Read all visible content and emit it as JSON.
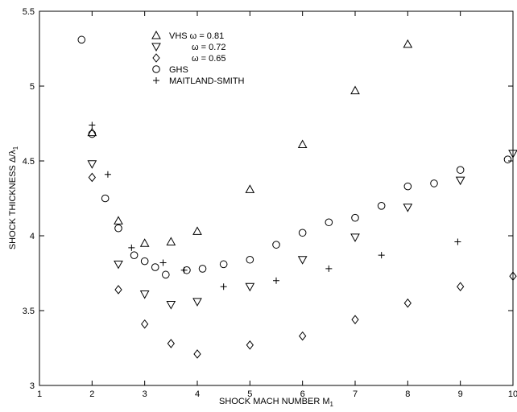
{
  "chart_data": {
    "type": "scatter",
    "xlabel": "SHOCK MACH NUMBER M",
    "xlabel_sub": "1",
    "ylabel": "SHOCK THICKNESS Δ/λ",
    "ylabel_sub": "1",
    "xlim": [
      1,
      10
    ],
    "ylim": [
      3,
      5.5
    ],
    "xticks": [
      "1",
      "2",
      "3",
      "4",
      "5",
      "6",
      "7",
      "8",
      "9",
      "10"
    ],
    "yticks": [
      "3",
      "3.5",
      "4",
      "4.5",
      "5",
      "5.5"
    ],
    "grid": false,
    "legend_position": "top-left",
    "series": [
      {
        "name": "VHS ω = 0.81",
        "marker": "triangle-up",
        "points": [
          [
            2.0,
            4.69
          ],
          [
            2.5,
            4.1
          ],
          [
            3.0,
            3.95
          ],
          [
            3.5,
            3.96
          ],
          [
            4.0,
            4.03
          ],
          [
            5.0,
            4.31
          ],
          [
            6.0,
            4.61
          ],
          [
            7.0,
            4.97
          ],
          [
            8.0,
            5.28
          ]
        ]
      },
      {
        "name": "ω = 0.72",
        "marker": "triangle-down",
        "points": [
          [
            2.0,
            4.48
          ],
          [
            2.5,
            3.81
          ],
          [
            3.0,
            3.61
          ],
          [
            3.5,
            3.54
          ],
          [
            4.0,
            3.56
          ],
          [
            5.0,
            3.66
          ],
          [
            6.0,
            3.84
          ],
          [
            7.0,
            3.99
          ],
          [
            8.0,
            4.19
          ],
          [
            9.0,
            4.37
          ],
          [
            10.0,
            4.55
          ]
        ]
      },
      {
        "name": "ω = 0.65",
        "marker": "diamond",
        "points": [
          [
            2.0,
            4.39
          ],
          [
            2.5,
            3.64
          ],
          [
            3.0,
            3.41
          ],
          [
            3.5,
            3.28
          ],
          [
            4.0,
            3.21
          ],
          [
            5.0,
            3.27
          ],
          [
            6.0,
            3.33
          ],
          [
            7.0,
            3.44
          ],
          [
            8.0,
            3.55
          ],
          [
            9.0,
            3.66
          ],
          [
            10.0,
            3.73
          ]
        ]
      },
      {
        "name": "GHS",
        "marker": "circle",
        "points": [
          [
            1.8,
            5.31
          ],
          [
            2.0,
            4.68
          ],
          [
            2.25,
            4.25
          ],
          [
            2.5,
            4.05
          ],
          [
            2.8,
            3.87
          ],
          [
            3.0,
            3.83
          ],
          [
            3.2,
            3.79
          ],
          [
            3.4,
            3.74
          ],
          [
            3.8,
            3.77
          ],
          [
            4.1,
            3.78
          ],
          [
            4.5,
            3.81
          ],
          [
            5.0,
            3.84
          ],
          [
            5.5,
            3.94
          ],
          [
            6.0,
            4.02
          ],
          [
            6.5,
            4.09
          ],
          [
            7.0,
            4.12
          ],
          [
            7.5,
            4.2
          ],
          [
            8.0,
            4.33
          ],
          [
            8.5,
            4.35
          ],
          [
            9.0,
            4.44
          ],
          [
            9.9,
            4.51
          ]
        ]
      },
      {
        "name": "MAITLAND-SMITH",
        "marker": "plus",
        "points": [
          [
            2.0,
            4.74
          ],
          [
            2.3,
            4.41
          ],
          [
            2.75,
            3.92
          ],
          [
            3.35,
            3.82
          ],
          [
            3.75,
            3.77
          ],
          [
            4.5,
            3.66
          ],
          [
            5.5,
            3.7
          ],
          [
            6.5,
            3.78
          ],
          [
            7.5,
            3.87
          ],
          [
            8.95,
            3.96
          ]
        ]
      }
    ]
  }
}
